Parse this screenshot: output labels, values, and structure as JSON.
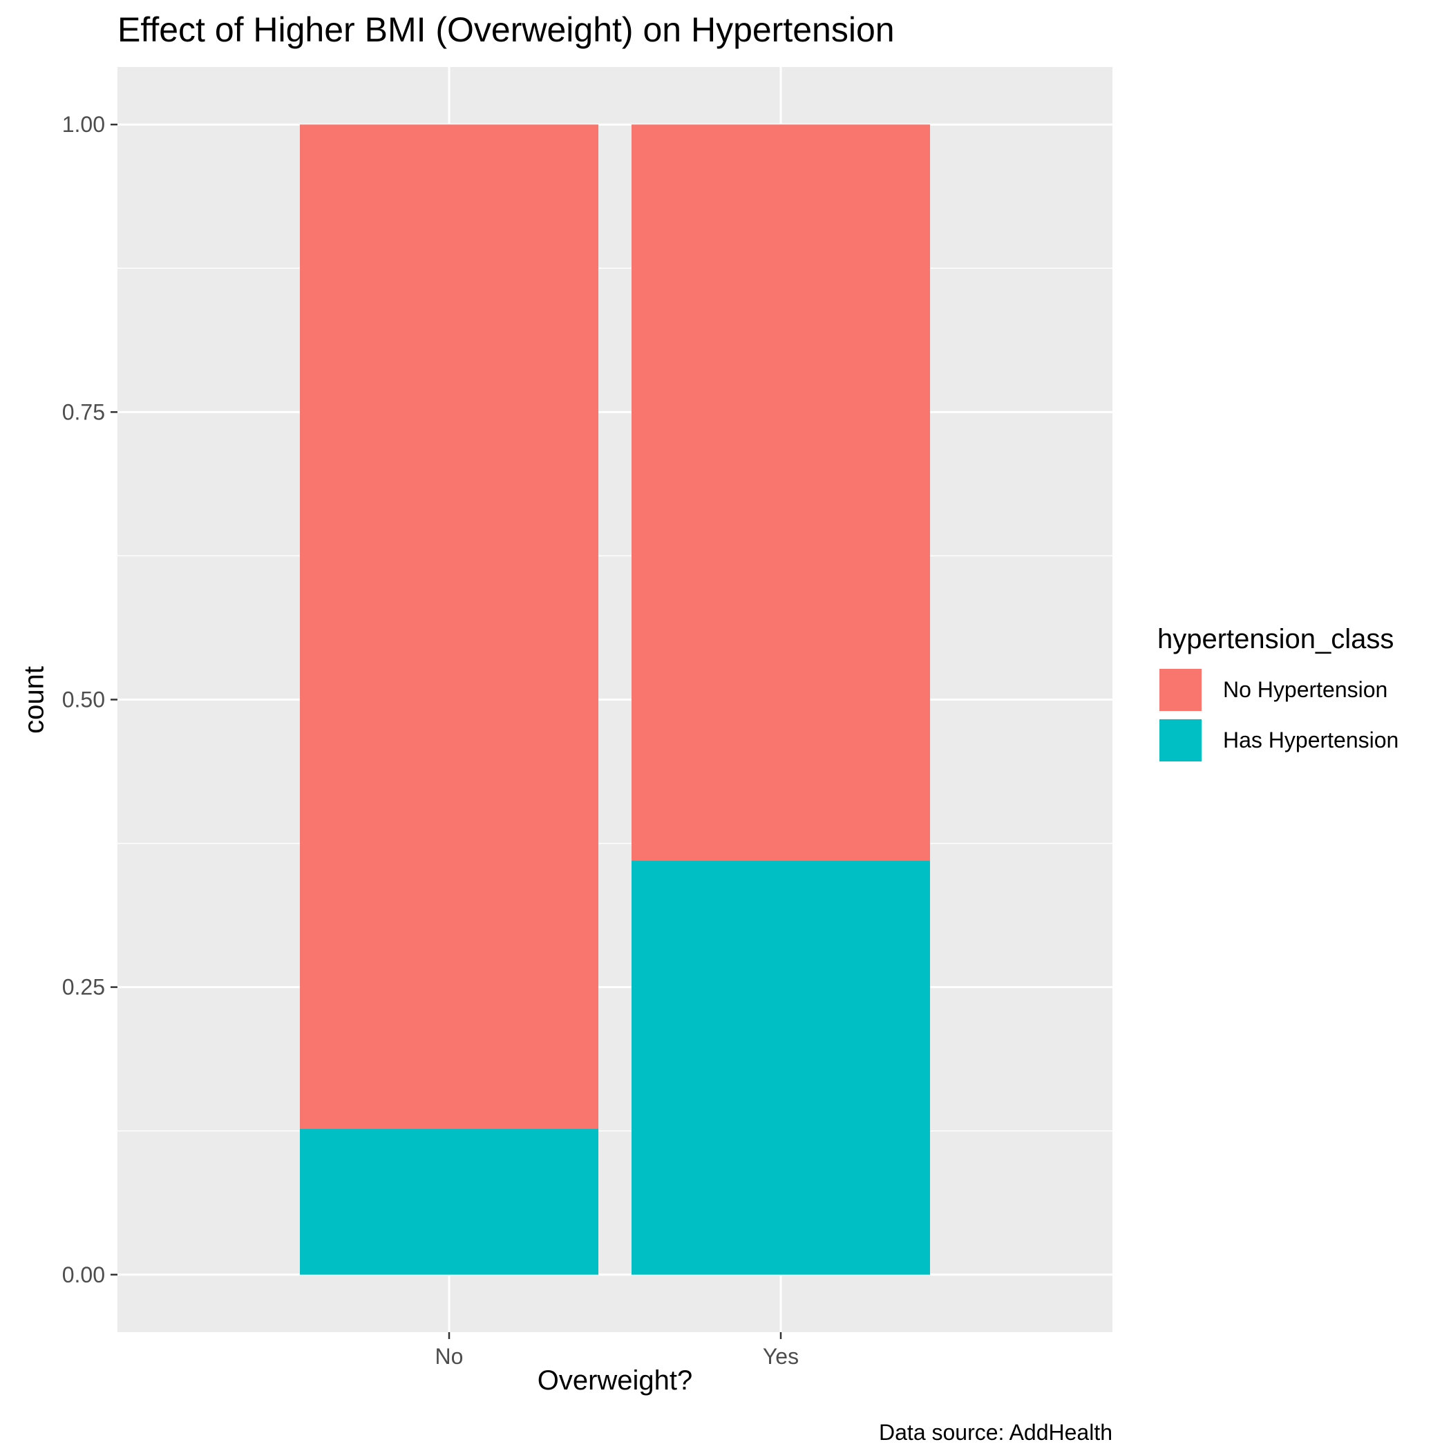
{
  "chart_data": {
    "type": "bar",
    "stacked": true,
    "title": "Effect of Higher BMI (Overweight) on Hypertension",
    "xlabel": "Overweight?",
    "ylabel": "count",
    "caption": "Data source: AddHealth",
    "categories": [
      "No",
      "Yes"
    ],
    "ylim": [
      -0.05,
      1.05
    ],
    "yticks": [
      0.0,
      0.25,
      0.5,
      0.75,
      1.0
    ],
    "ytick_labels": [
      "0.00",
      "0.25",
      "0.50",
      "0.75",
      "1.00"
    ],
    "grid": true,
    "legend_title": "hypertension_class",
    "legend_position": "right",
    "series": [
      {
        "name": "No Hypertension",
        "values": [
          0.873,
          0.64
        ],
        "color": "#F8766D"
      },
      {
        "name": "Has Hypertension",
        "values": [
          0.127,
          0.36
        ],
        "color": "#00BFC4"
      }
    ]
  }
}
